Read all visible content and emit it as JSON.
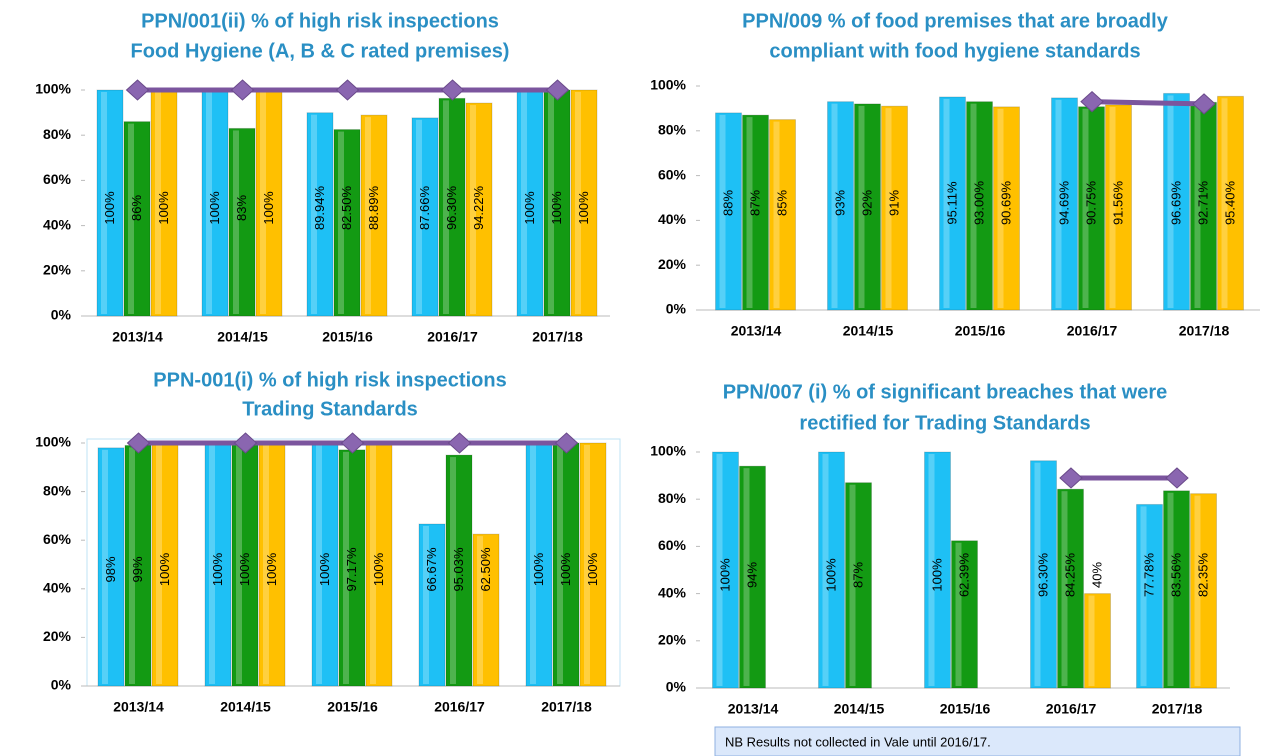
{
  "chart_data": [
    {
      "type": "bar",
      "title": [
        "PPN/001(ii) % of high risk inspections",
        "Food Hygiene (A, B & C rated premises)"
      ],
      "categories": [
        "2013/14",
        "2014/15",
        "2015/16",
        "2016/17",
        "2017/18"
      ],
      "series": [
        {
          "color": "#1ec0f5",
          "values": [
            100,
            100,
            89.94,
            87.66,
            100
          ],
          "value_labels": [
            "100%",
            "100%",
            "89.94%",
            "87.66%",
            "100%"
          ]
        },
        {
          "color": "#139a13",
          "values": [
            86,
            83,
            82.5,
            96.3,
            100
          ],
          "value_labels": [
            "86%",
            "83%",
            "82.50%",
            "96.30%",
            "100%"
          ]
        },
        {
          "color": "#ffc000",
          "values": [
            100,
            100,
            88.89,
            94.22,
            100
          ],
          "value_labels": [
            "100%",
            "100%",
            "88.89%",
            "94.22%",
            "100%"
          ]
        },
        {
          "type": "line",
          "color": "#7b559e",
          "values": [
            100,
            100,
            100,
            100,
            100
          ]
        }
      ],
      "ylim": [
        0,
        100
      ],
      "yticks": [
        {
          "value": 0,
          "label": "0%"
        },
        {
          "value": 20,
          "label": "20%"
        },
        {
          "value": 40,
          "label": "40%"
        },
        {
          "value": 60,
          "label": "60%"
        },
        {
          "value": 80,
          "label": "80%"
        },
        {
          "value": 100,
          "label": "100%"
        }
      ]
    },
    {
      "type": "bar",
      "title": [
        "PPN/009 % of food premises that are broadly",
        "compliant with food hygiene standards"
      ],
      "categories": [
        "2013/14",
        "2014/15",
        "2015/16",
        "2016/17",
        "2017/18"
      ],
      "series": [
        {
          "color": "#1ec0f5",
          "values": [
            88,
            93,
            95.11,
            94.69,
            96.69
          ],
          "value_labels": [
            "88%",
            "93%",
            "95.11%",
            "94.69%",
            "96.69%"
          ]
        },
        {
          "color": "#139a13",
          "values": [
            87,
            92,
            93,
            90.75,
            92.71
          ],
          "value_labels": [
            "87%",
            "92%",
            "93.00%",
            "90.75%",
            "92.71%"
          ]
        },
        {
          "color": "#ffc000",
          "values": [
            85,
            91,
            90.69,
            91.56,
            95.4
          ],
          "value_labels": [
            "85%",
            "91%",
            "90.69%",
            "91.56%",
            "95.40%"
          ]
        },
        {
          "type": "line",
          "color": "#7b559e",
          "values": [
            null,
            null,
            null,
            93,
            92
          ]
        }
      ],
      "ylim": [
        0,
        100
      ],
      "yticks": [
        {
          "value": 0,
          "label": "0%"
        },
        {
          "value": 20,
          "label": "20%"
        },
        {
          "value": 40,
          "label": "40%"
        },
        {
          "value": 60,
          "label": "60%"
        },
        {
          "value": 80,
          "label": "80%"
        },
        {
          "value": 100,
          "label": "100%"
        }
      ]
    },
    {
      "type": "bar",
      "title": [
        "PPN-001(i) % of high risk inspections",
        "Trading Standards"
      ],
      "categories": [
        "2013/14",
        "2014/15",
        "2015/16",
        "2016/17",
        "2017/18"
      ],
      "series": [
        {
          "color": "#1ec0f5",
          "values": [
            98,
            100,
            100,
            66.67,
            100
          ],
          "value_labels": [
            "98%",
            "100%",
            "100%",
            "66.67%",
            "100%"
          ]
        },
        {
          "color": "#139a13",
          "values": [
            99,
            100,
            97.17,
            95.03,
            100
          ],
          "value_labels": [
            "99%",
            "100%",
            "97.17%",
            "95.03%",
            "100%"
          ]
        },
        {
          "color": "#ffc000",
          "values": [
            100,
            100,
            100,
            62.5,
            100
          ],
          "value_labels": [
            "100%",
            "100%",
            "100%",
            "62.50%",
            "100%"
          ]
        },
        {
          "type": "line",
          "color": "#7b559e",
          "values": [
            100,
            100,
            100,
            100,
            100
          ]
        }
      ],
      "ylim": [
        0,
        100
      ],
      "yticks": [
        {
          "value": 0,
          "label": "0%"
        },
        {
          "value": 20,
          "label": "20%"
        },
        {
          "value": 40,
          "label": "40%"
        },
        {
          "value": 60,
          "label": "60%"
        },
        {
          "value": 80,
          "label": "80%"
        },
        {
          "value": 100,
          "label": "100%"
        }
      ],
      "plot_border": true
    },
    {
      "type": "bar",
      "title": [
        "PPN/007 (i) % of significant breaches that were",
        "rectified for Trading Standards"
      ],
      "categories": [
        "2013/14",
        "2014/15",
        "2015/16",
        "2016/17",
        "2017/18"
      ],
      "series": [
        {
          "color": "#1ec0f5",
          "values": [
            100,
            100,
            100,
            96.3,
            77.78
          ],
          "value_labels": [
            "100%",
            "100%",
            "100%",
            "96.30%",
            "77.78%"
          ]
        },
        {
          "color": "#139a13",
          "values": [
            94,
            87,
            62.39,
            84.25,
            83.56
          ],
          "value_labels": [
            "94%",
            "87%",
            "62.39%",
            "84.25%",
            "83.56%"
          ]
        },
        {
          "color": "#ffc000",
          "values": [
            null,
            null,
            null,
            40,
            82.35
          ],
          "value_labels": [
            null,
            null,
            null,
            "40%",
            "82.35%"
          ]
        },
        {
          "type": "line",
          "color": "#7b559e",
          "values": [
            null,
            null,
            null,
            89,
            89
          ]
        }
      ],
      "ylim": [
        0,
        100
      ],
      "yticks": [
        {
          "value": 0,
          "label": "0%"
        },
        {
          "value": 20,
          "label": "20%"
        },
        {
          "value": 40,
          "label": "40%"
        },
        {
          "value": 60,
          "label": "60%"
        },
        {
          "value": 80,
          "label": "80%"
        },
        {
          "value": 100,
          "label": "100%"
        }
      ],
      "note": "NB Results not collected in Vale until 2016/17."
    }
  ]
}
